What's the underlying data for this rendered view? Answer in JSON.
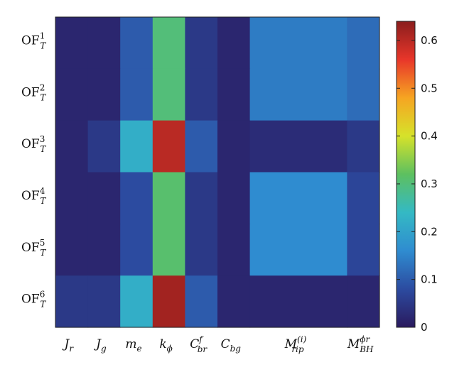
{
  "chart_data": {
    "type": "heatmap",
    "title": "",
    "xlabel": "",
    "ylabel": "",
    "x_labels": [
      {
        "base": "J",
        "sub": "r",
        "sup": ""
      },
      {
        "base": "J",
        "sub": "g",
        "sup": ""
      },
      {
        "base": "m",
        "sub": "e",
        "sup": ""
      },
      {
        "base": "k",
        "sub": "ϕ",
        "sup": ""
      },
      {
        "base": "C",
        "sub": "br",
        "sup": "f"
      },
      {
        "base": "C",
        "sub": "bg",
        "sup": ""
      },
      {
        "base": "M",
        "sub": "rip",
        "sup": "(i)"
      },
      {
        "base": "M",
        "sub": "BH",
        "sup": "ϕr"
      }
    ],
    "y_labels": [
      {
        "base": "OF",
        "sub": "T",
        "sup": "1"
      },
      {
        "base": "OF",
        "sub": "T",
        "sup": "2"
      },
      {
        "base": "OF",
        "sub": "T",
        "sup": "3"
      },
      {
        "base": "OF",
        "sub": "T",
        "sup": "4"
      },
      {
        "base": "OF",
        "sub": "T",
        "sup": "5"
      },
      {
        "base": "OF",
        "sub": "T",
        "sup": "6"
      }
    ],
    "x_widths": [
      1,
      1,
      1,
      1,
      1,
      1,
      3,
      1
    ],
    "values": [
      [
        0.02,
        0.02,
        0.1,
        0.3,
        0.05,
        0.02,
        0.14,
        0.12
      ],
      [
        0.02,
        0.02,
        0.1,
        0.3,
        0.05,
        0.02,
        0.14,
        0.12
      ],
      [
        0.02,
        0.05,
        0.22,
        0.6,
        0.1,
        0.02,
        0.03,
        0.05
      ],
      [
        0.02,
        0.02,
        0.08,
        0.31,
        0.05,
        0.02,
        0.16,
        0.07
      ],
      [
        0.02,
        0.02,
        0.08,
        0.31,
        0.05,
        0.02,
        0.16,
        0.07
      ],
      [
        0.05,
        0.05,
        0.22,
        0.62,
        0.1,
        0.02,
        0.02,
        0.02
      ]
    ],
    "colorbar": {
      "min": 0,
      "max": 0.64,
      "ticks": [
        0,
        0.1,
        0.2,
        0.3,
        0.4,
        0.5,
        0.6
      ]
    },
    "colormap": "jet",
    "grid": false
  }
}
